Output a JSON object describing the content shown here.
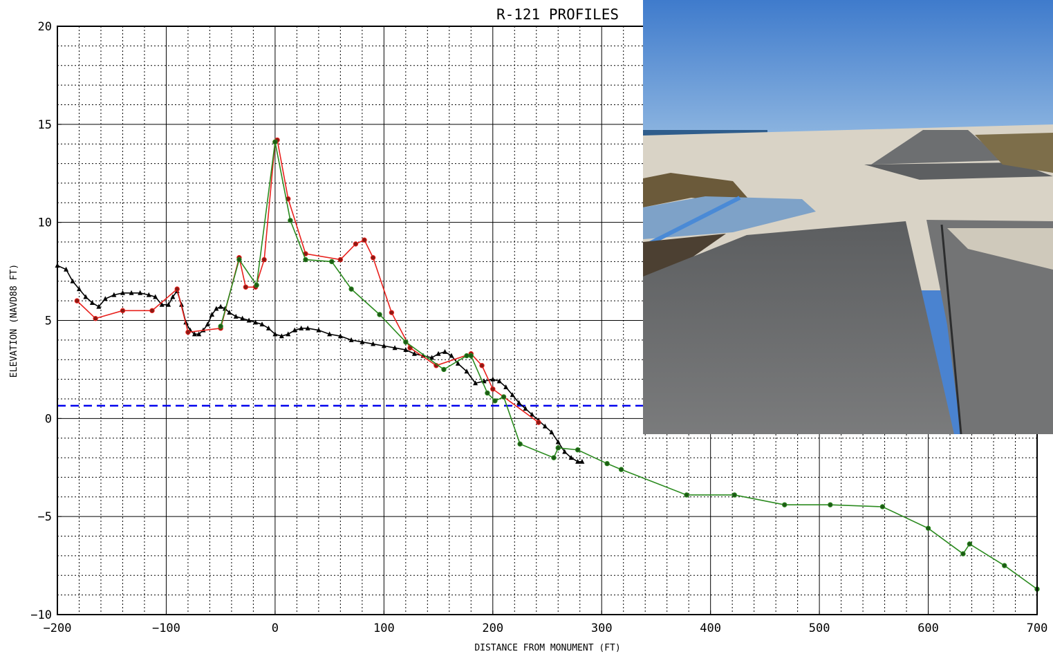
{
  "chart_data": {
    "type": "line",
    "title": "R-121 PROFILES",
    "xlabel": "DISTANCE FROM MONUMENT (FT)",
    "ylabel": "ELEVATION (NAVD88 FT)",
    "xlim": [
      -200,
      700
    ],
    "ylim": [
      -10,
      20
    ],
    "xticks": [
      -200,
      -100,
      0,
      100,
      200,
      300,
      400,
      500,
      600,
      700
    ],
    "yticks": [
      -10,
      -5,
      0,
      5,
      10,
      15,
      20
    ],
    "xtick_labels": [
      "−200",
      "−100",
      "0",
      "100",
      "200",
      "300",
      "400",
      "500",
      "600",
      "700"
    ],
    "ytick_labels": [
      "−10",
      "−5",
      "0",
      "5",
      "10",
      "15",
      "20"
    ],
    "grid": "major solid, minor dotted",
    "reference_line": {
      "y": 0.65,
      "color": "#0000ee",
      "style": "dashed"
    },
    "series": [
      {
        "color": "#000000",
        "marker": "triangle",
        "x": [
          -200,
          -192,
          -186,
          -180,
          -174,
          -168,
          -162,
          -156,
          -148,
          -140,
          -132,
          -124,
          -116,
          -110,
          -104,
          -98,
          -94,
          -90,
          -86,
          -82,
          -78,
          -74,
          -70,
          -66,
          -62,
          -58,
          -54,
          -50,
          -46,
          -42,
          -36,
          -30,
          -24,
          -18,
          -12,
          -6,
          0,
          6,
          12,
          18,
          24,
          30,
          40,
          50,
          60,
          70,
          80,
          90,
          100,
          110,
          120,
          128,
          136,
          144,
          150,
          156,
          162,
          168,
          176,
          184,
          192,
          200,
          206,
          212,
          218,
          224,
          230,
          236,
          242,
          248,
          254,
          260,
          266,
          272,
          278,
          282
        ],
        "y": [
          7.8,
          7.6,
          7.0,
          6.6,
          6.2,
          5.9,
          5.7,
          6.1,
          6.3,
          6.4,
          6.4,
          6.4,
          6.3,
          6.2,
          5.8,
          5.8,
          6.2,
          6.5,
          5.8,
          4.9,
          4.5,
          4.3,
          4.3,
          4.5,
          4.8,
          5.3,
          5.6,
          5.7,
          5.6,
          5.4,
          5.2,
          5.1,
          5.0,
          4.9,
          4.8,
          4.6,
          4.3,
          4.2,
          4.3,
          4.5,
          4.6,
          4.6,
          4.5,
          4.3,
          4.2,
          4.0,
          3.9,
          3.8,
          3.7,
          3.6,
          3.5,
          3.3,
          3.2,
          3.1,
          3.3,
          3.4,
          3.2,
          2.8,
          2.4,
          1.8,
          1.9,
          2.0,
          1.9,
          1.6,
          1.2,
          0.8,
          0.5,
          0.2,
          -0.1,
          -0.4,
          -0.7,
          -1.2,
          -1.7,
          -2.0,
          -2.2,
          -2.2
        ]
      },
      {
        "color": "#e8201c",
        "marker": "circle",
        "x": [
          -182,
          -165,
          -140,
          -113,
          -90,
          -80,
          -50,
          -33,
          -27,
          -18,
          -10,
          0,
          2,
          12,
          28,
          60,
          74,
          82,
          90,
          107,
          124,
          148,
          180,
          190,
          200,
          210,
          242
        ],
        "y": [
          6.0,
          5.1,
          5.5,
          5.5,
          6.6,
          4.4,
          4.6,
          8.2,
          6.7,
          6.7,
          8.1,
          14.1,
          14.2,
          11.2,
          8.4,
          8.1,
          8.9,
          9.1,
          8.2,
          5.4,
          3.6,
          2.7,
          3.3,
          2.7,
          1.5,
          1.1,
          -0.2
        ]
      },
      {
        "color": "#2a8a1e",
        "marker": "circle",
        "x": [
          -50,
          -33,
          -17,
          0,
          14,
          28,
          52,
          70,
          96,
          120,
          155,
          176,
          180,
          195,
          202,
          210,
          225,
          256,
          260,
          278,
          305,
          318,
          378,
          422,
          468,
          510,
          558,
          600,
          632,
          638,
          670,
          700
        ],
        "y": [
          4.7,
          8.1,
          6.8,
          14.1,
          10.1,
          8.1,
          8.0,
          6.6,
          5.3,
          3.9,
          2.5,
          3.2,
          3.2,
          1.3,
          0.9,
          1.1,
          -1.3,
          -2.0,
          -1.5,
          -1.6,
          -2.3,
          -2.6,
          -3.9,
          -3.9,
          -4.4,
          -4.4,
          -4.5,
          -5.6,
          -6.9,
          -6.4,
          -7.5,
          -8.7
        ]
      }
    ]
  },
  "photo": {
    "sky_color": "#4a86d4",
    "asphalt_color": "#6b6d6e",
    "sand_color": "#d8d2c4"
  }
}
